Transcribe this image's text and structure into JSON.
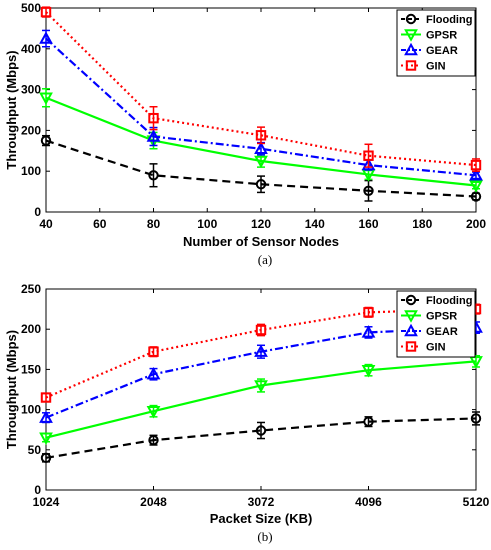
{
  "chart_data": [
    {
      "type": "line",
      "caption": "(a)",
      "xlabel": "Number of Sensor Nodes",
      "ylabel": "Throughput (Mbps)",
      "x": [
        40,
        80,
        120,
        160,
        200
      ],
      "xlim": [
        40,
        200
      ],
      "ylim": [
        0,
        500
      ],
      "xticks": [
        40,
        60,
        80,
        100,
        120,
        140,
        160,
        180,
        200
      ],
      "yticks": [
        0,
        100,
        200,
        300,
        400,
        500
      ],
      "grid": false,
      "legend_position": "top-right",
      "series": [
        {
          "name": "Flooding",
          "color": "#000000",
          "dash": "dashed",
          "marker": "circle",
          "values": [
            175,
            90,
            68,
            52,
            38
          ],
          "errors": [
            12,
            28,
            20,
            25,
            8
          ]
        },
        {
          "name": "GPSR",
          "color": "#00ff00",
          "dash": "solid",
          "marker": "triangle-down",
          "values": [
            280,
            175,
            125,
            92,
            65
          ],
          "errors": [
            22,
            20,
            15,
            12,
            8
          ]
        },
        {
          "name": "GEAR",
          "color": "#0000ff",
          "dash": "dashdot",
          "marker": "triangle-up",
          "values": [
            425,
            185,
            155,
            115,
            90
          ],
          "errors": [
            20,
            22,
            15,
            12,
            8
          ]
        },
        {
          "name": "GIN",
          "color": "#ff0000",
          "dash": "dotted",
          "marker": "square",
          "values": [
            490,
            230,
            188,
            138,
            115
          ],
          "errors": [
            12,
            28,
            20,
            28,
            15
          ]
        }
      ]
    },
    {
      "type": "line",
      "caption": "(b)",
      "xlabel": "Packet Size (KB)",
      "ylabel": "Throughput (Mbps)",
      "x": [
        1024,
        2048,
        3072,
        4096,
        5120
      ],
      "xlim": [
        1024,
        5120
      ],
      "ylim": [
        0,
        250
      ],
      "xticks": [
        1024,
        2048,
        3072,
        4096,
        5120
      ],
      "yticks": [
        0,
        50,
        100,
        150,
        200,
        250
      ],
      "grid": false,
      "legend_position": "top-right",
      "series": [
        {
          "name": "Flooding",
          "color": "#000000",
          "dash": "dashed",
          "marker": "circle",
          "values": [
            40,
            62,
            74,
            85,
            89
          ],
          "errors": [
            5,
            6,
            10,
            6,
            8
          ]
        },
        {
          "name": "GPSR",
          "color": "#00ff00",
          "dash": "solid",
          "marker": "triangle-down",
          "values": [
            65,
            98,
            130,
            149,
            160
          ],
          "errors": [
            5,
            7,
            8,
            7,
            7
          ]
        },
        {
          "name": "GEAR",
          "color": "#0000ff",
          "dash": "dashdot",
          "marker": "triangle-up",
          "values": [
            90,
            144,
            172,
            196,
            202
          ],
          "errors": [
            6,
            7,
            8,
            7,
            7
          ]
        },
        {
          "name": "GIN",
          "color": "#ff0000",
          "dash": "dotted",
          "marker": "square",
          "values": [
            115,
            172,
            199,
            221,
            225
          ],
          "errors": [
            5,
            6,
            7,
            6,
            6
          ]
        }
      ]
    }
  ]
}
